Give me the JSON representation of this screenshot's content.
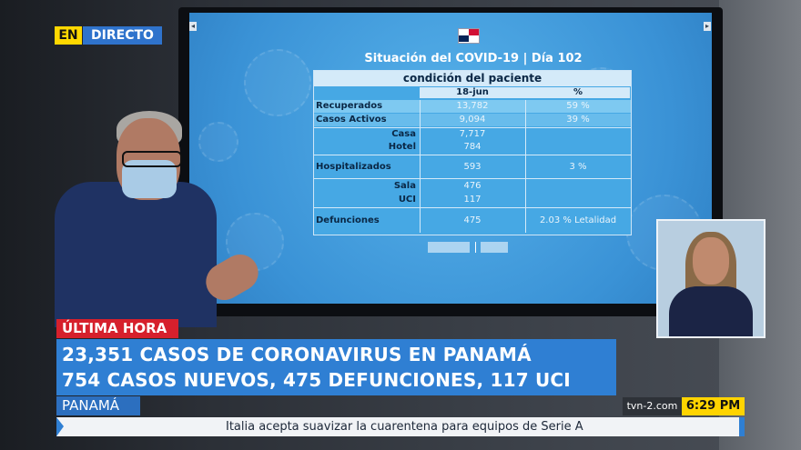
{
  "live_badge": {
    "lang": "EN",
    "label": "DIRECTO"
  },
  "slide": {
    "title": "Situación del COVID-19 | Día 102",
    "table_title": "condición del paciente",
    "col_date": "18-jun",
    "col_pct": "%",
    "rows": [
      {
        "label": "Recuperados",
        "value": "13,782",
        "pct": "59 %"
      },
      {
        "label": "Casos Activos",
        "value": "9,094",
        "pct": "39 %"
      },
      {
        "label": "Casa",
        "value": "7,717",
        "pct": ""
      },
      {
        "label": "Hotel",
        "value": "784",
        "pct": ""
      },
      {
        "label": "Hospitalizados",
        "value": "593",
        "pct": "3 %"
      },
      {
        "label": "Sala",
        "value": "476",
        "pct": ""
      },
      {
        "label": "UCI",
        "value": "117",
        "pct": ""
      },
      {
        "label": "Defunciones",
        "value": "475",
        "pct": "2.03 % Letalidad"
      }
    ]
  },
  "lower_third": {
    "tag": "ÚLTIMA HORA",
    "headline_line1": "23,351 CASOS DE CORONAVIRUS EN PANAMÁ",
    "headline_line2": "754 CASOS NUEVOS, 475 DEFUNCIONES, 117 UCI",
    "location": "PANAMÁ",
    "ticker": "Italia acepta suavizar la cuarentena para equipos de Serie A",
    "site": "tvn-2.com",
    "time": "6:29 PM"
  },
  "colors": {
    "accent_blue": "#2f7fd3",
    "breaking_red": "#d6202c",
    "clock_yellow": "#ffd400"
  }
}
